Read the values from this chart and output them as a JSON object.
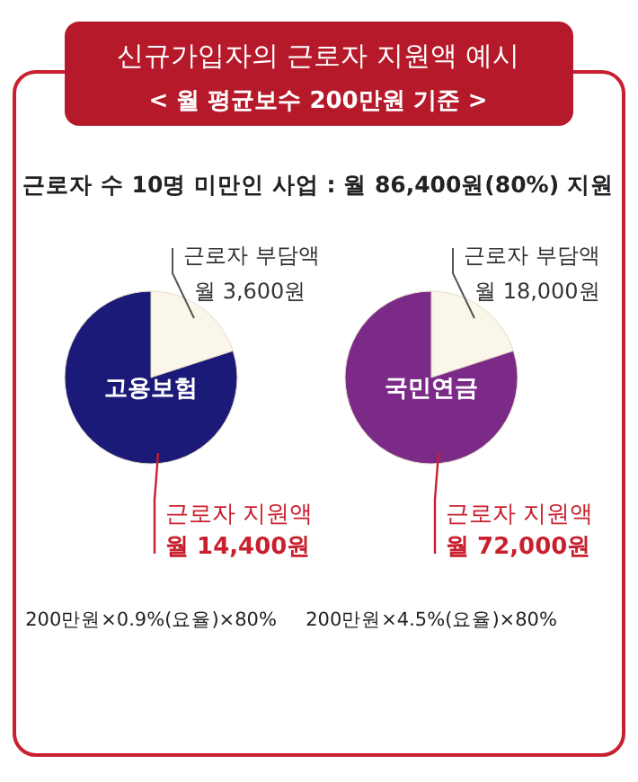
{
  "chart_data": [
    {
      "type": "other",
      "title": "신규가입자의 근로자 지원액 예시",
      "subtitle": "< 월 평균보수 200만원 기준 >",
      "annotations": [
        "근로자 수 10명 미만인 사업 : 월 86,400원(80%) 지원"
      ]
    },
    {
      "type": "pie",
      "title": "고용보험",
      "categories": [
        "근로자 부담액",
        "근로자 지원액"
      ],
      "values": [
        3600,
        14400
      ],
      "colors": [
        "#fbf6ea",
        "#1c1a78"
      ],
      "value_labels": [
        "월 3,600원",
        "월 14,400원"
      ],
      "annotations": [
        "200만원×0.9%(요율)×80%"
      ],
      "legend": false
    },
    {
      "type": "pie",
      "title": "국민연금",
      "categories": [
        "근로자 부담액",
        "근로자 지원액"
      ],
      "values": [
        18000,
        72000
      ],
      "colors": [
        "#fbf6ea",
        "#7b2a88"
      ],
      "value_labels": [
        "월 18,000원",
        "월 72,000원"
      ],
      "annotations": [
        "200만원×4.5%(요율)×80%"
      ],
      "legend": false
    }
  ]
}
